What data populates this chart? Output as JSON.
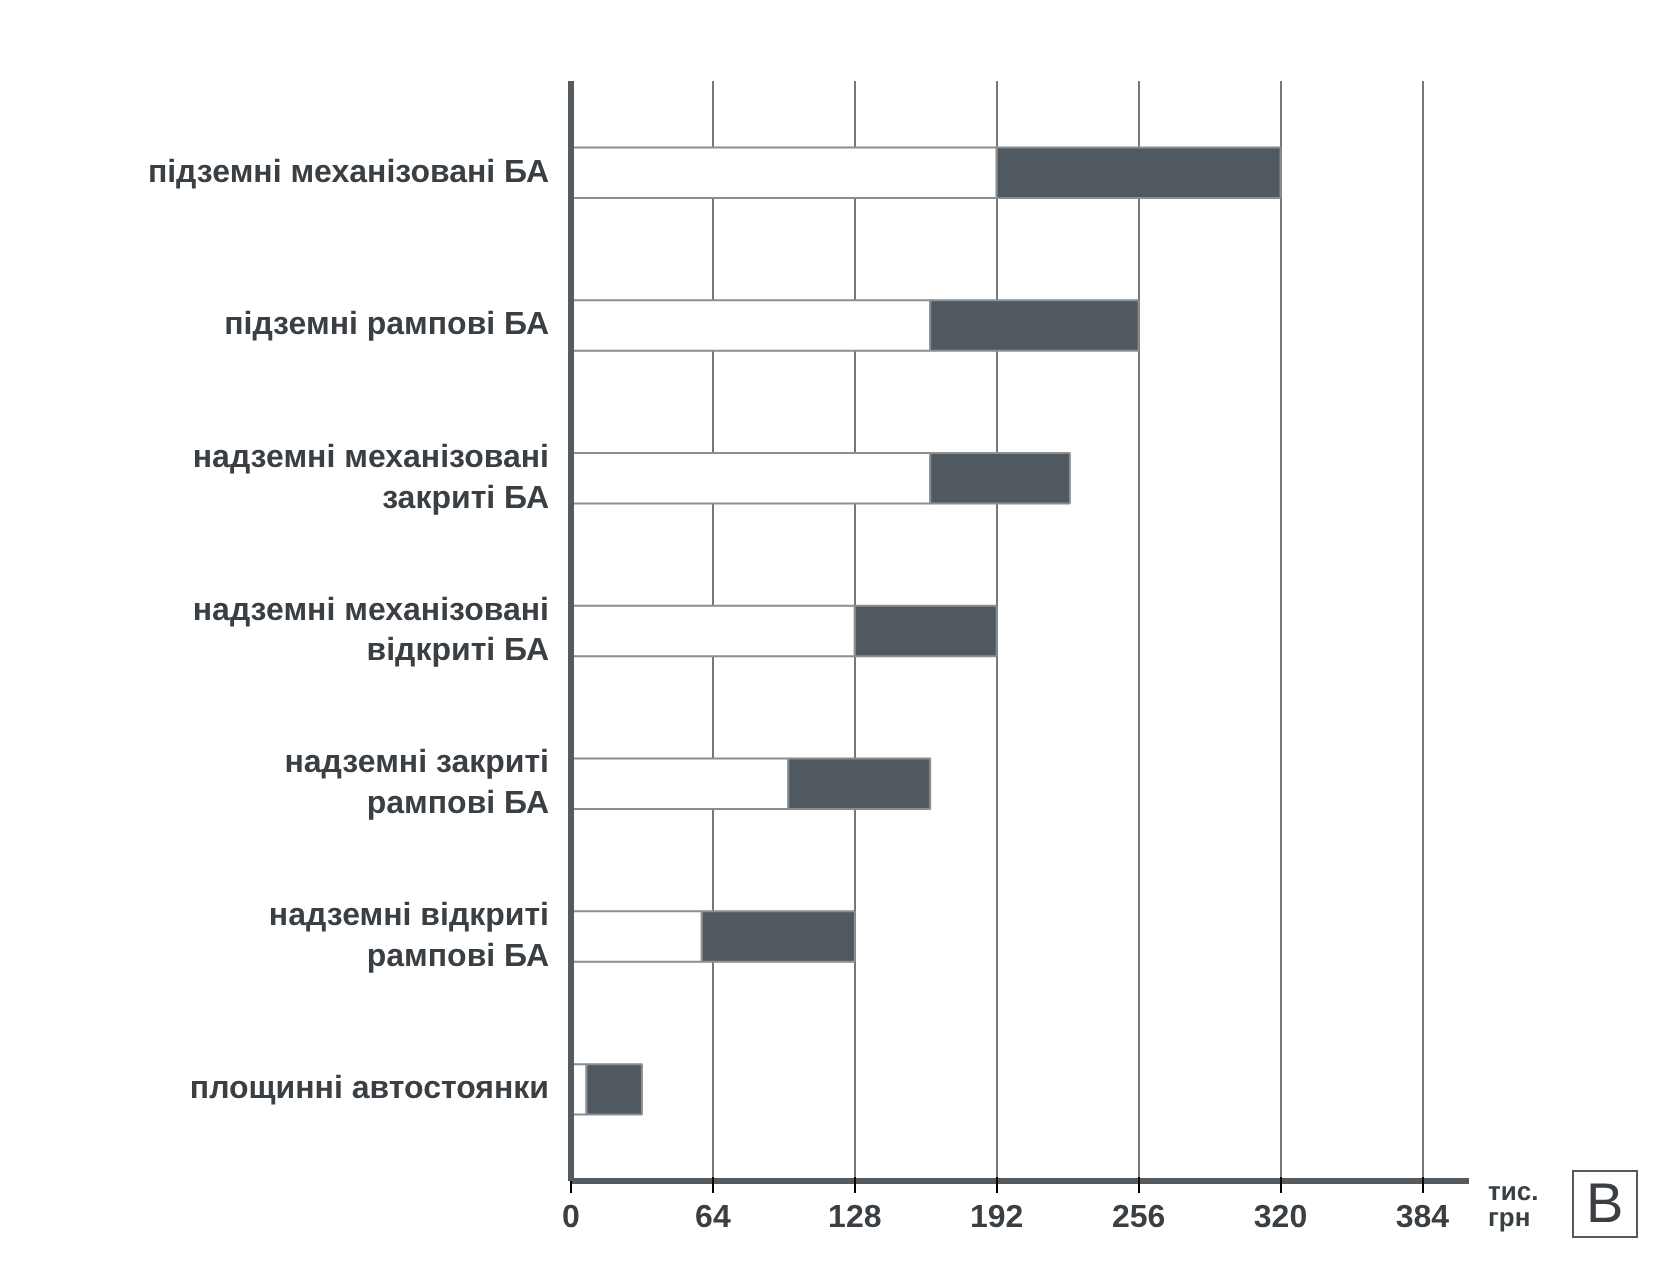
{
  "chart_data": {
    "type": "bar",
    "orientation": "horizontal",
    "stacked": true,
    "categories": [
      "підземні механізовані БА",
      "підземні рампові БА",
      "надземні механізовані\nзакриті БА",
      "надземні механізовані\nвідкриті БА",
      "надземні закриті\nрампові БА",
      "надземні відкриті\nрампові БА",
      "площинні автостоянки"
    ],
    "series": [
      {
        "color": "#ffffff",
        "values": [
          192,
          162,
          162,
          128,
          98,
          59,
          7
        ]
      },
      {
        "color": "#50595f",
        "values": [
          128,
          94,
          63,
          64,
          64,
          69,
          25
        ]
      }
    ],
    "xlabel": "тис. грн",
    "xlim": [
      0,
      405
    ],
    "xticks": [
      0,
      64,
      128,
      192,
      256,
      320,
      384
    ],
    "grid": "x",
    "annotations": [
      "В"
    ]
  }
}
